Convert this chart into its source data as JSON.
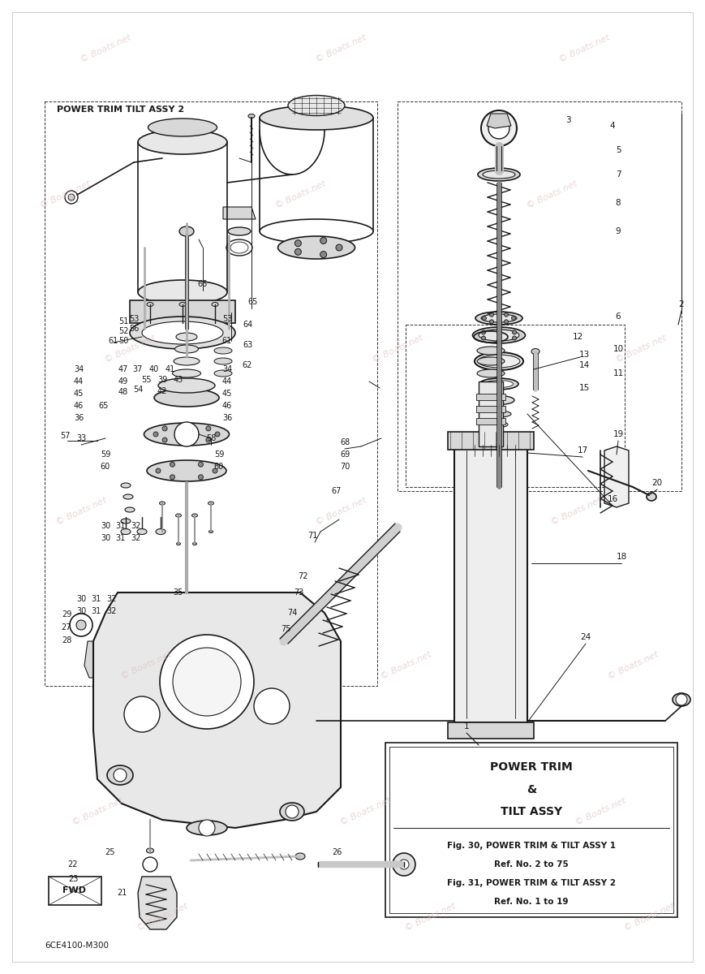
{
  "bg_color": "#ffffff",
  "lc": "#1a1a1a",
  "wm_color": "#ddbcbc",
  "wm_text": "© Boats.net",
  "part_number": "6CE4100-M300",
  "fwd_text": "FWD",
  "title_line1": "POWER TRIM",
  "title_line2": "&",
  "title_line3": "TILT ASSY",
  "title_line4": "Fig. 30, POWER TRIM & TILT ASSY 1",
  "title_line5": "Ref. No. 2 to 75",
  "title_line6": "Fig. 31, POWER TRIM & TILT ASSY 2",
  "title_line7": "Ref. No. 1 to 19",
  "header": "POWER TRIM TILT ASSY 2"
}
